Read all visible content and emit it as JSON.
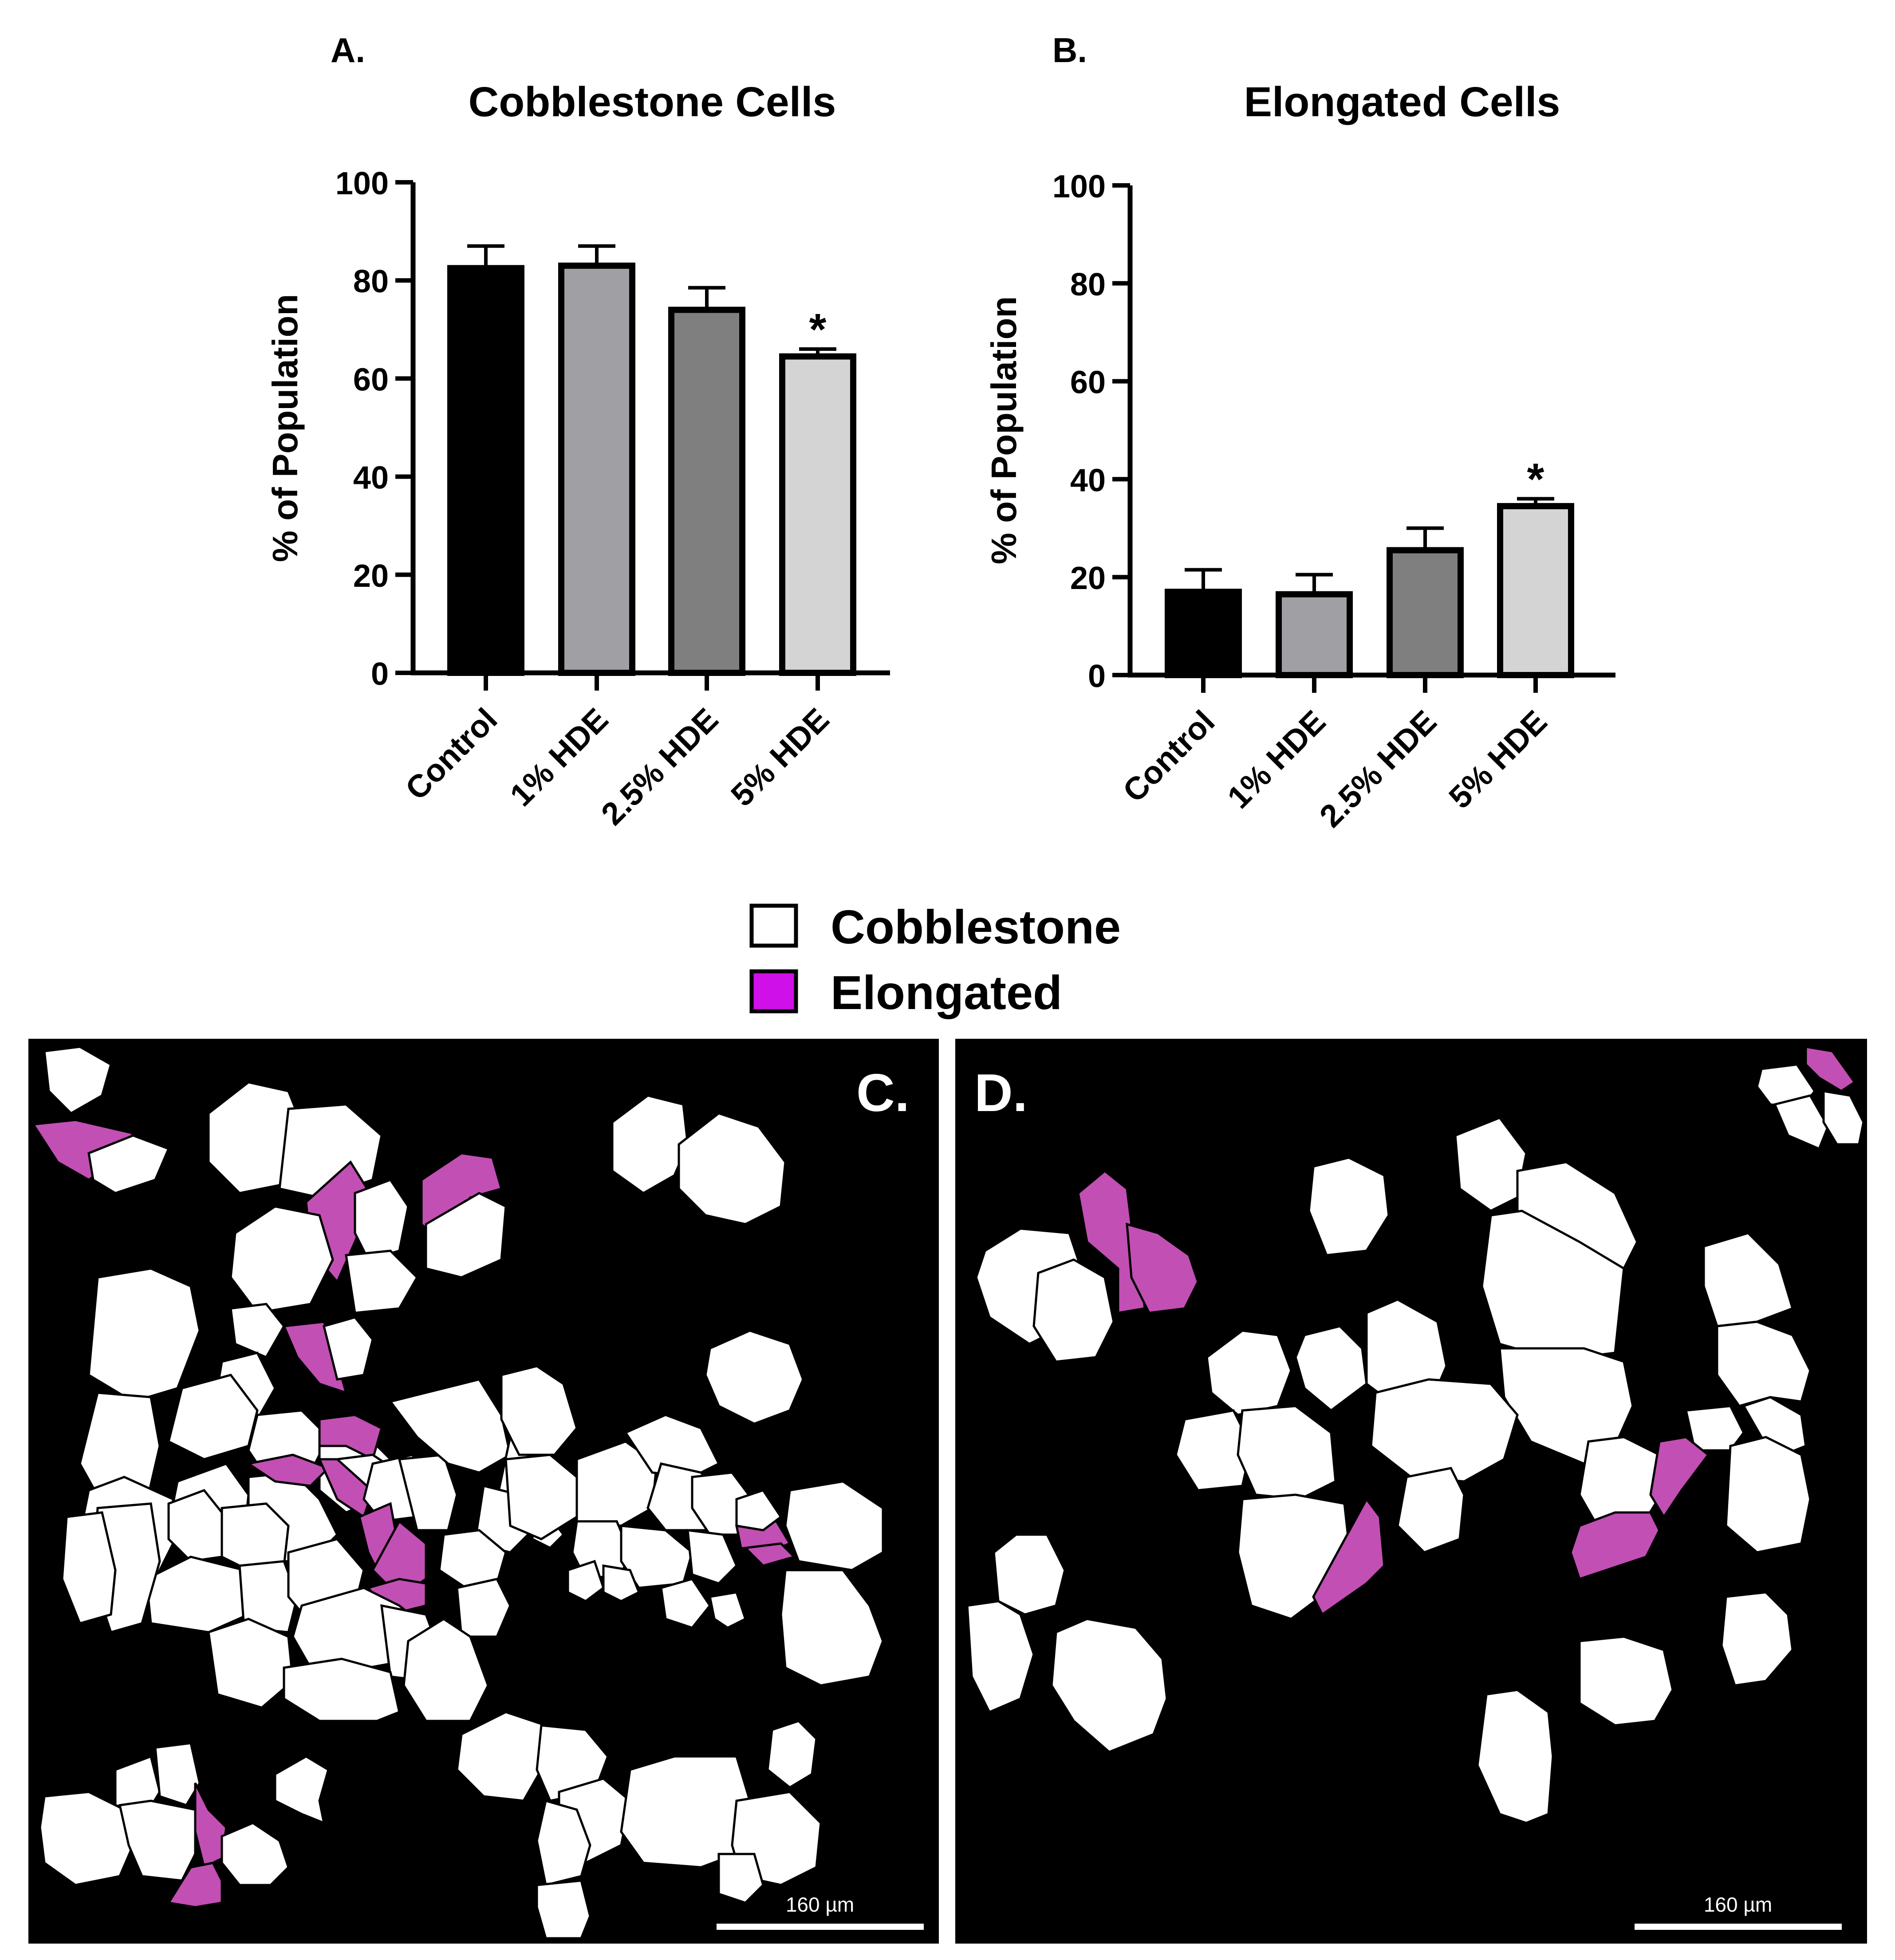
{
  "panels": {
    "a": {
      "letter": "A."
    },
    "b": {
      "letter": "B."
    },
    "c": {
      "letter": "C.",
      "scale_bar": "160 µm"
    },
    "d": {
      "letter": "D.",
      "scale_bar": "160 µm"
    }
  },
  "legend": {
    "items": [
      {
        "label": "Cobblestone",
        "color": "#ffffff"
      },
      {
        "label": "Elongated",
        "color": "#d010e8"
      }
    ]
  },
  "chart_data": [
    {
      "type": "bar",
      "title": "Cobblestone Cells",
      "ylabel": "% of Population",
      "xlabel": "",
      "categories": [
        "Control",
        "1% HDE",
        "2.5% HDE",
        "5% HDE"
      ],
      "values": [
        82.5,
        83.0,
        74.0,
        64.5
      ],
      "errors": [
        4.5,
        4.0,
        4.5,
        1.5
      ],
      "significance": [
        "",
        "",
        "",
        "*"
      ],
      "bar_colors": [
        "#000000",
        "#a0a0a4",
        "#7f7f7f",
        "#d4d4d4"
      ],
      "ylim": [
        0,
        100
      ],
      "yticks": [
        0,
        20,
        40,
        60,
        80,
        100
      ],
      "grid": false
    },
    {
      "type": "bar",
      "title": "Elongated Cells",
      "ylabel": "% of Population",
      "xlabel": "",
      "categories": [
        "Control",
        "1% HDE",
        "2.5% HDE",
        "5% HDE"
      ],
      "values": [
        17.0,
        16.5,
        25.5,
        34.5
      ],
      "errors": [
        4.5,
        4.0,
        4.5,
        1.5
      ],
      "significance": [
        "",
        "",
        "",
        "*"
      ],
      "bar_colors": [
        "#000000",
        "#a0a0a4",
        "#7f7f7f",
        "#d4d4d4"
      ],
      "ylim": [
        0,
        100
      ],
      "yticks": [
        0,
        20,
        40,
        60,
        80,
        100
      ],
      "grid": false
    }
  ]
}
